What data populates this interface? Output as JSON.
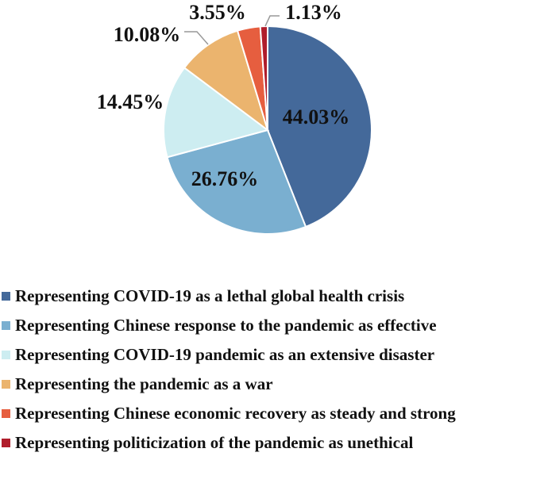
{
  "chart_data": {
    "type": "pie",
    "title": "",
    "categories": [
      "Representing COVID-19 as a lethal global health crisis",
      "Representing Chinese response to the pandemic as effective",
      "Representing COVID-19 pandemic as an extensive disaster",
      "Representing the pandemic as a war",
      "Representing Chinese economic recovery as steady and strong",
      "Representing politicization of the pandemic as unethical"
    ],
    "values": [
      44.03,
      26.76,
      14.45,
      10.08,
      3.55,
      1.13
    ],
    "labels": [
      "44.03%",
      "26.76%",
      "14.45%",
      "10.08%",
      "3.55%",
      "1.13%"
    ],
    "colors": [
      "#44699A",
      "#7AAFD0",
      "#CDEDF1",
      "#EBB46E",
      "#E65E3F",
      "#B01D2B"
    ],
    "start_angle": "12 o'clock, clockwise",
    "legend_position": "bottom"
  },
  "legend": {
    "items": [
      {
        "label": "Representing COVID-19 as a lethal global health crisis",
        "color": "#44699A"
      },
      {
        "label": "Representing Chinese response to the pandemic as effective",
        "color": "#7AAFD0"
      },
      {
        "label": "Representing COVID-19 pandemic as an extensive disaster",
        "color": "#CDEDF1"
      },
      {
        "label": "Representing the pandemic as a war",
        "color": "#EBB46E"
      },
      {
        "label": "Representing Chinese economic recovery as steady and strong",
        "color": "#E65E3F"
      },
      {
        "label": "Representing politicization of the pandemic as unethical",
        "color": "#B01D2B"
      }
    ]
  }
}
